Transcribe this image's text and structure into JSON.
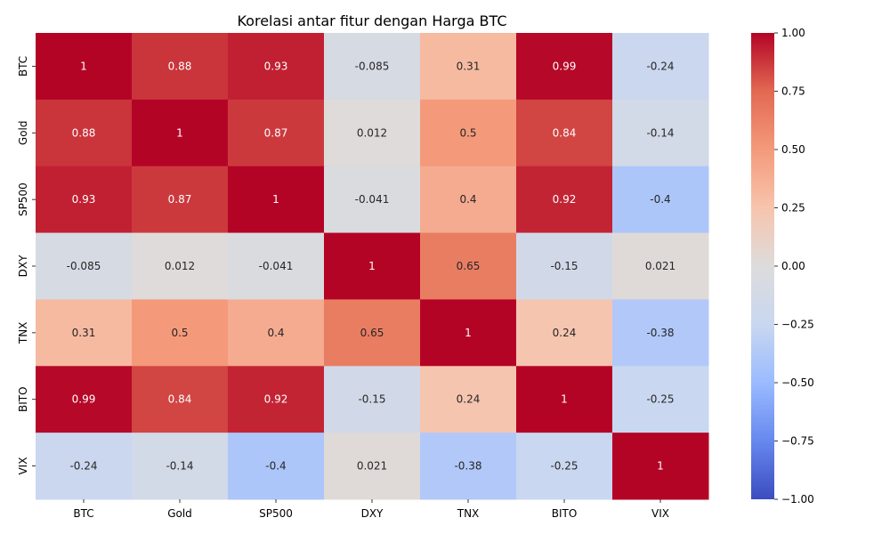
{
  "chart_data": {
    "type": "heatmap",
    "title": "Korelasi antar fitur dengan Harga BTC",
    "x_categories": [
      "BTC",
      "Gold",
      "SP500",
      "DXY",
      "TNX",
      "BITO",
      "VIX"
    ],
    "y_categories": [
      "BTC",
      "Gold",
      "SP500",
      "DXY",
      "TNX",
      "BITO",
      "VIX"
    ],
    "values": [
      [
        1,
        0.88,
        0.93,
        -0.085,
        0.31,
        0.99,
        -0.24
      ],
      [
        0.88,
        1,
        0.87,
        0.012,
        0.5,
        0.84,
        -0.14
      ],
      [
        0.93,
        0.87,
        1,
        -0.041,
        0.4,
        0.92,
        -0.4
      ],
      [
        -0.085,
        0.012,
        -0.041,
        1,
        0.65,
        -0.15,
        0.021
      ],
      [
        0.31,
        0.5,
        0.4,
        0.65,
        1,
        0.24,
        -0.38
      ],
      [
        0.99,
        0.84,
        0.92,
        -0.15,
        0.24,
        1,
        -0.25
      ],
      [
        -0.24,
        -0.14,
        -0.4,
        0.021,
        -0.38,
        -0.25,
        1
      ]
    ],
    "value_labels": [
      [
        "1",
        "0.88",
        "0.93",
        "-0.085",
        "0.31",
        "0.99",
        "-0.24"
      ],
      [
        "0.88",
        "1",
        "0.87",
        "0.012",
        "0.5",
        "0.84",
        "-0.14"
      ],
      [
        "0.93",
        "0.87",
        "1",
        "-0.041",
        "0.4",
        "0.92",
        "-0.4"
      ],
      [
        "-0.085",
        "0.012",
        "-0.041",
        "1",
        "0.65",
        "-0.15",
        "0.021"
      ],
      [
        "0.31",
        "0.5",
        "0.4",
        "0.65",
        "1",
        "0.24",
        "-0.38"
      ],
      [
        "0.99",
        "0.84",
        "0.92",
        "-0.15",
        "0.24",
        "1",
        "-0.25"
      ],
      [
        "-0.24",
        "-0.14",
        "-0.4",
        "0.021",
        "-0.38",
        "-0.25",
        "1"
      ]
    ],
    "colormap": "coolwarm",
    "colormap_stops": [
      "#3b4cc0",
      "#6788ee",
      "#9abbff",
      "#c9d7f0",
      "#dddcdc",
      "#f7c4ad",
      "#f49a7b",
      "#e26952",
      "#b40426"
    ],
    "vmin": -1,
    "vmax": 1,
    "colorbar_ticks": [
      1,
      0.75,
      0.5,
      0.25,
      0,
      -0.25,
      -0.5,
      -0.75,
      -1
    ],
    "colorbar_tick_labels": [
      "1.00",
      "0.75",
      "0.50",
      "0.25",
      "0.00",
      "−0.25",
      "−0.50",
      "−0.75",
      "−1.00"
    ],
    "grid": false,
    "colorbar_position": "right"
  }
}
